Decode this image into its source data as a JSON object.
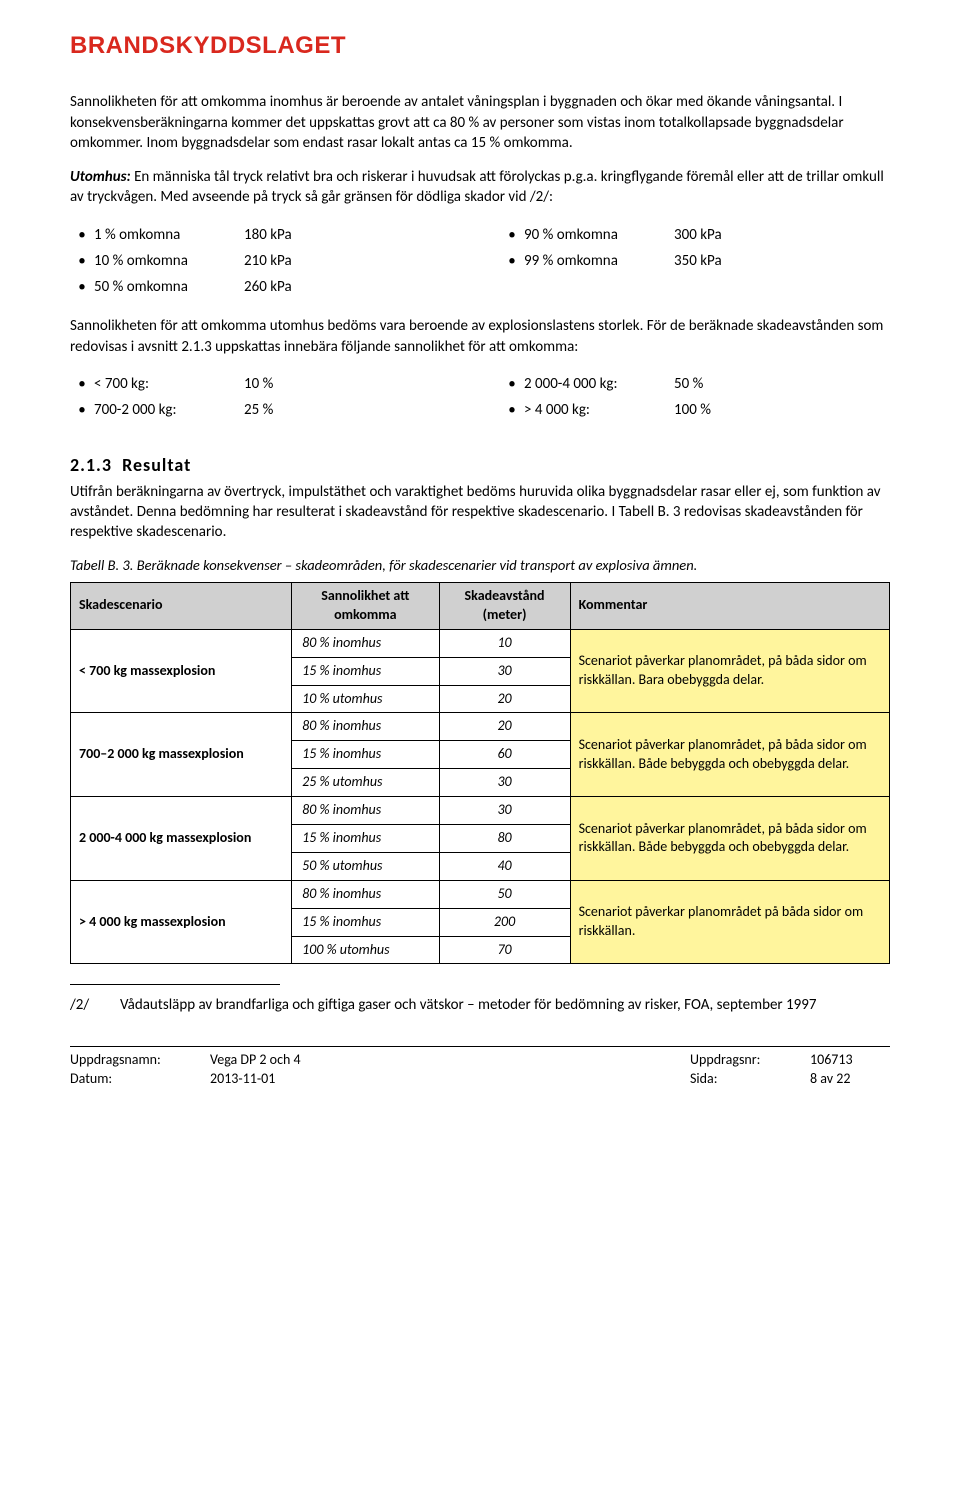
{
  "logo": "BRANDSKYDDSLAGET",
  "para1": "Sannolikheten för att omkomma inomhus är beroende av antalet våningsplan i byggnaden och ökar med ökande våningsantal. I konsekvensberäkningarna kommer det uppskattas grovt att ca 80 % av personer som vistas inom totalkollapsade byggnadsdelar omkommer. Inom byggnadsdelar som endast rasar lokalt antas ca 15 % omkomma.",
  "para2_prefix": "Utomhus:",
  "para2": " En människa tål tryck relativt bra och riskerar i huvudsak att förolyckas p.g.a. kringflygande föremål eller att de trillar omkull av tryckvågen. Med avseende på tryck så går gränsen för dödliga skador vid /2/:",
  "pressure_list": [
    {
      "label": "1 % omkomna",
      "value": "180 kPa"
    },
    {
      "label": "10 % omkomna",
      "value": "210 kPa"
    },
    {
      "label": "50 % omkomna",
      "value": "260 kPa"
    },
    {
      "label": "90 % omkomna",
      "value": "300 kPa"
    },
    {
      "label": "99 % omkomna",
      "value": "350 kPa"
    }
  ],
  "para3": "Sannolikheten för att omkomma utomhus bedöms vara beroende av explosionslastens storlek. För de beräknade skadeavstånden som redovisas i avsnitt 2.1.3 uppskattas innebära följande sannolikhet för att omkomma:",
  "mass_list": [
    {
      "label": "< 700 kg:",
      "value": "10 %"
    },
    {
      "label": "700-2 000 kg:",
      "value": "25 %"
    },
    {
      "label": "2 000-4 000 kg:",
      "value": "50 %"
    },
    {
      "label": "> 4 000 kg:",
      "value": "100 %"
    }
  ],
  "section_number": "2.1.3",
  "section_title": "Resultat",
  "para4": "Utifrån beräkningarna av övertryck, impulstäthet och varaktighet bedöms huruvida olika byggnadsdelar rasar eller ej, som funktion av avståndet. Denna bedömning har resulterat i skadeavstånd för respektive skadescenario. I Tabell B. 3 redovisas skadeavstånden för respektive skadescenario.",
  "table_caption": "Tabell B. 3. Beräknade konsekvenser – skadeområden, för skadescenarier vid transport av explosiva ämnen.",
  "table_headers": {
    "c1": "Skadescenario",
    "c2": "Sannolikhet att omkomma",
    "c3": "Skadeavstånd (meter)",
    "c4": "Kommentar"
  },
  "table_rows": [
    {
      "scenario": "< 700 kg massexplosion",
      "lines": [
        {
          "prob": "80 % inomhus",
          "dist": "10"
        },
        {
          "prob": "15 % inomhus",
          "dist": "30"
        },
        {
          "prob": "10 % utomhus",
          "dist": "20"
        }
      ],
      "comment": "Scenariot påverkar planområdet, på båda sidor om riskkällan. Bara obebyggda delar."
    },
    {
      "scenario": "700–2 000 kg massexplosion",
      "lines": [
        {
          "prob": "80 % inomhus",
          "dist": "20"
        },
        {
          "prob": "15 % inomhus",
          "dist": "60"
        },
        {
          "prob": "25 % utomhus",
          "dist": "30"
        }
      ],
      "comment": "Scenariot påverkar planområdet, på båda sidor om riskkällan. Både bebyggda och obebyggda delar."
    },
    {
      "scenario": "2 000-4 000 kg massexplosion",
      "lines": [
        {
          "prob": "80 % inomhus",
          "dist": "30"
        },
        {
          "prob": "15 % inomhus",
          "dist": "80"
        },
        {
          "prob": "50 % utomhus",
          "dist": "40"
        }
      ],
      "comment": "Scenariot påverkar planområdet, på båda sidor om riskkällan. Både bebyggda och obebyggda delar."
    },
    {
      "scenario": "> 4 000 kg massexplosion",
      "lines": [
        {
          "prob": "80 % inomhus",
          "dist": "50"
        },
        {
          "prob": "15 % inomhus",
          "dist": "200"
        },
        {
          "prob": "100 % utomhus",
          "dist": "70"
        }
      ],
      "comment": "Scenariot påverkar planområdet på båda sidor om riskkällan."
    }
  ],
  "footnote_ref": "/2/",
  "footnote_text": "Vådautsläpp av brandfarliga och giftiga gaser och vätskor – metoder för bedömning av risker, FOA, september 1997",
  "footer": {
    "label_name": "Uppdragsnamn:",
    "value_name": "Vega DP 2 och 4",
    "label_date": "Datum:",
    "value_date": "2013-11-01",
    "label_nr": "Uppdragsnr:",
    "value_nr": "106713",
    "label_page": "Sida:",
    "value_page": "8 av 22"
  }
}
